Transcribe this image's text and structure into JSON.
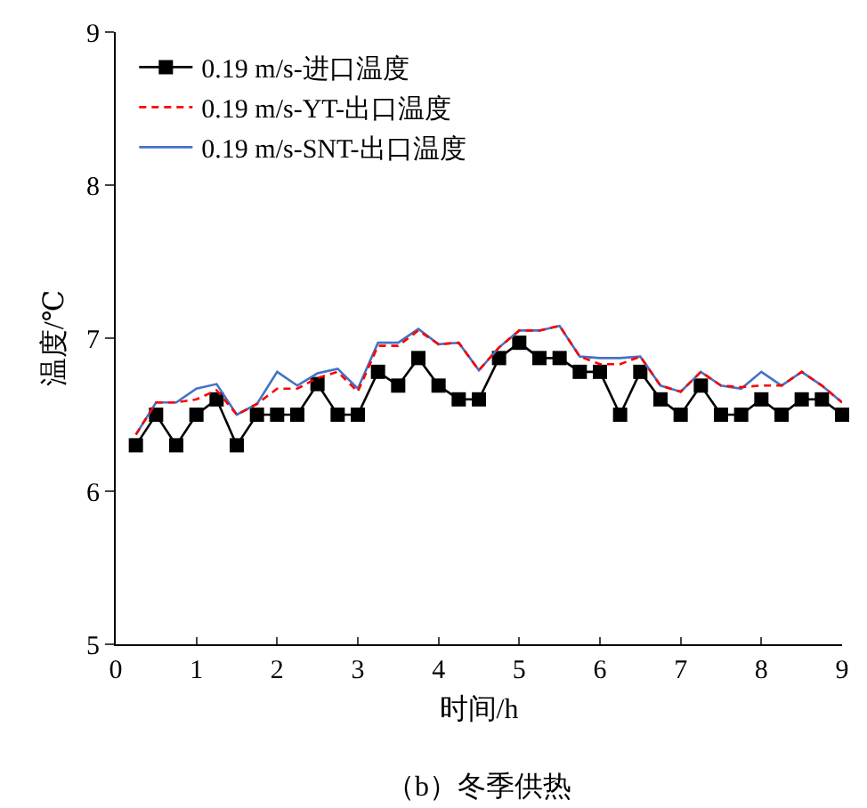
{
  "chart_data": {
    "type": "line",
    "title": "（b）冬季供热",
    "xlabel": "时间/h",
    "ylabel": "温度/℃",
    "x": [
      0.25,
      0.5,
      0.75,
      1,
      1.25,
      1.5,
      1.75,
      2,
      2.25,
      2.5,
      2.75,
      3,
      3.25,
      3.5,
      3.75,
      4,
      4.25,
      4.5,
      4.75,
      5,
      5.25,
      5.5,
      5.75,
      6,
      6.25,
      6.5,
      6.75,
      7,
      7.25,
      7.5,
      7.75,
      8,
      8.25,
      8.5,
      8.75,
      9
    ],
    "series": [
      {
        "name": "0.19 m/s-进口温度",
        "color": "#000000",
        "marker": "square",
        "line_style": "solid",
        "values": [
          6.3,
          6.5,
          6.3,
          6.5,
          6.6,
          6.3,
          6.5,
          6.5,
          6.5,
          6.7,
          6.5,
          6.5,
          6.78,
          6.69,
          6.87,
          6.69,
          6.6,
          6.6,
          6.87,
          6.97,
          6.87,
          6.87,
          6.78,
          6.78,
          6.5,
          6.78,
          6.6,
          6.5,
          6.69,
          6.5,
          6.5,
          6.6,
          6.5,
          6.6,
          6.6,
          6.5
        ]
      },
      {
        "name": "0.19 m/s-YT-出口温度",
        "color": "#ff0000",
        "marker": "none",
        "line_style": "dashed",
        "values": [
          6.37,
          6.58,
          6.58,
          6.6,
          6.66,
          6.5,
          6.57,
          6.67,
          6.67,
          6.74,
          6.78,
          6.65,
          6.95,
          6.95,
          7.05,
          6.96,
          6.97,
          6.79,
          6.94,
          7.05,
          7.05,
          7.08,
          6.88,
          6.83,
          6.83,
          6.88,
          6.69,
          6.65,
          6.78,
          6.69,
          6.68,
          6.69,
          6.69,
          6.78,
          6.69,
          6.58
        ]
      },
      {
        "name": "0.19 m/s-SNT-出口温度",
        "color": "#4472c4",
        "marker": "none",
        "line_style": "solid",
        "values": [
          6.37,
          6.58,
          6.58,
          6.67,
          6.7,
          6.5,
          6.57,
          6.78,
          6.69,
          6.77,
          6.8,
          6.67,
          6.97,
          6.97,
          7.06,
          6.96,
          6.97,
          6.79,
          6.94,
          7.05,
          7.05,
          7.08,
          6.88,
          6.87,
          6.87,
          6.88,
          6.69,
          6.65,
          6.78,
          6.69,
          6.67,
          6.78,
          6.69,
          6.78,
          6.69,
          6.58
        ]
      }
    ],
    "xlim": [
      0,
      9
    ],
    "xticks": [
      0,
      1,
      2,
      3,
      4,
      5,
      6,
      7,
      8,
      9
    ],
    "ylim": [
      5,
      9
    ],
    "yticks": [
      5,
      6,
      7,
      8,
      9
    ],
    "grid": false,
    "legend": "top left"
  }
}
